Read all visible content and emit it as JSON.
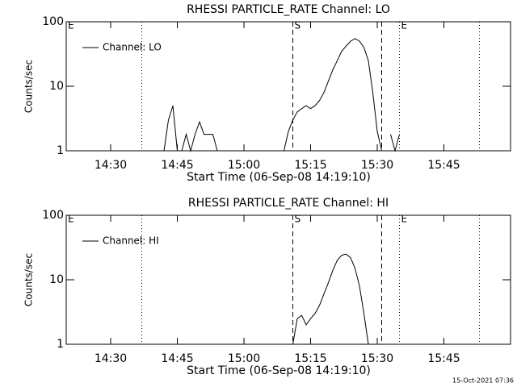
{
  "chart_data": [
    {
      "type": "line",
      "title": "RHESSI PARTICLE_RATE Channel: LO",
      "xlabel": "Start Time (06-Sep-08 14:19:10)",
      "ylabel": "Counts/sec",
      "x": [
        "14:42",
        "14:43",
        "14:44",
        "14:45",
        "14:46",
        "14:47",
        "14:48",
        "14:49",
        "14:50",
        "14:51",
        "14:52",
        "14:53",
        "14:54",
        "15:00",
        "15:09",
        "15:10",
        "15:11",
        "15:12",
        "15:13",
        "15:14",
        "15:15",
        "15:16",
        "15:17",
        "15:18",
        "15:19",
        "15:20",
        "15:21",
        "15:22",
        "15:23",
        "15:24",
        "15:25",
        "15:26",
        "15:27",
        "15:28",
        "15:29",
        "15:30",
        "15:31",
        "15:32",
        "15:33",
        "15:34",
        "15:35"
      ],
      "series": [
        {
          "name": "Channel: LO",
          "color": "#000000",
          "values": [
            1,
            3,
            5,
            1,
            1,
            1.8,
            1,
            1.8,
            2.8,
            1.8,
            1.8,
            1.8,
            1,
            null,
            1,
            2,
            3,
            4,
            4.5,
            5,
            4.5,
            5,
            6,
            8,
            12,
            18,
            25,
            35,
            42,
            50,
            55,
            50,
            40,
            25,
            8,
            2,
            1,
            null,
            1.8,
            1,
            1.8
          ]
        }
      ],
      "xlim": [
        "14:20",
        "16:00"
      ],
      "xticks": [
        "14:30",
        "14:45",
        "15:00",
        "15:15",
        "15:30",
        "15:45"
      ],
      "ylim": [
        1,
        100
      ],
      "yticks": [
        1,
        10,
        100
      ],
      "log_y": true,
      "legend": "upper left",
      "vlines": [
        {
          "x": "14:37",
          "style": "dotted"
        },
        {
          "x": "15:11",
          "style": "dashed"
        },
        {
          "x": "15:31",
          "style": "dashed"
        },
        {
          "x": "15:35",
          "style": "dotted"
        },
        {
          "x": "15:53",
          "style": "dotted"
        }
      ],
      "annotations": [
        {
          "x": "14:20",
          "text": "E"
        },
        {
          "x": "15:11",
          "text": "S"
        },
        {
          "x": "15:35",
          "text": "E"
        }
      ]
    },
    {
      "type": "line",
      "title": "RHESSI PARTICLE_RATE Channel: HI",
      "xlabel": "Start Time (06-Sep-08 14:19:10)",
      "ylabel": "Counts/sec",
      "x": [
        "15:11",
        "15:12",
        "15:13",
        "15:14",
        "15:15",
        "15:16",
        "15:17",
        "15:18",
        "15:19",
        "15:20",
        "15:21",
        "15:22",
        "15:23",
        "15:24",
        "15:25",
        "15:26",
        "15:27",
        "15:28"
      ],
      "series": [
        {
          "name": "Channel: HI",
          "color": "#000000",
          "values": [
            1,
            2.5,
            2.8,
            2,
            2.5,
            3,
            4,
            6,
            9,
            14,
            20,
            24,
            25,
            22,
            15,
            8,
            3,
            1
          ]
        }
      ],
      "xlim": [
        "14:20",
        "16:00"
      ],
      "xticks": [
        "14:30",
        "14:45",
        "15:00",
        "15:15",
        "15:30",
        "15:45"
      ],
      "ylim": [
        1,
        100
      ],
      "yticks": [
        1,
        10,
        100
      ],
      "log_y": true,
      "legend": "upper left",
      "vlines": [
        {
          "x": "14:37",
          "style": "dotted"
        },
        {
          "x": "15:11",
          "style": "dashed"
        },
        {
          "x": "15:31",
          "style": "dashed"
        },
        {
          "x": "15:35",
          "style": "dotted"
        },
        {
          "x": "15:53",
          "style": "dotted"
        }
      ],
      "annotations": [
        {
          "x": "14:20",
          "text": "E"
        },
        {
          "x": "15:11",
          "text": "S"
        },
        {
          "x": "15:35",
          "text": "E"
        }
      ]
    }
  ],
  "timestamp": "15-Oct-2021 07:36"
}
